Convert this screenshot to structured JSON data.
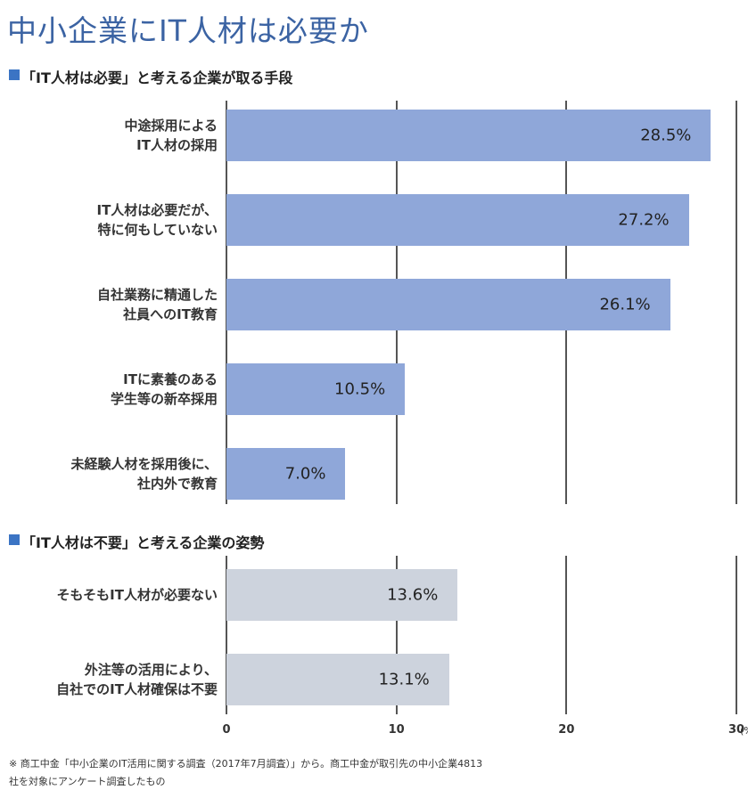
{
  "title": "中小企業にIT人材は必要か",
  "note": "※ 商工中金「中小企業のIT活用に関する調査（2017年7月調査）」から。商工中金が取引先の中小企業4813\n社を対象にアンケート調査したもの",
  "chart_data": [
    {
      "type": "bar",
      "orientation": "horizontal",
      "subtitle": "「IT人材は必要」と考える企業が取る手段",
      "categories": [
        "中途採用による\nIT人材の採用",
        "IT人材は必要だが、\n特に何もしていない",
        "自社業務に精通した\n社員へのIT教育",
        "ITに素養のある\n学生等の新卒採用",
        "未経験人材を採用後に、\n社内外で教育"
      ],
      "values": [
        28.5,
        27.2,
        26.1,
        10.5,
        7.0
      ],
      "value_labels": [
        "28.5%",
        "27.2%",
        "26.1%",
        "10.5%",
        "7.0%"
      ],
      "color": "#8fa7d9",
      "xlim": [
        0,
        30
      ],
      "xticks": [
        0,
        10,
        20,
        30
      ],
      "grid": true
    },
    {
      "type": "bar",
      "orientation": "horizontal",
      "subtitle": "「IT人材は不要」と考える企業の姿勢",
      "categories": [
        "そもそもIT人材が必要ない",
        "外注等の活用により、\n自社でのIT人材確保は不要"
      ],
      "values": [
        13.6,
        13.1
      ],
      "value_labels": [
        "13.6%",
        "13.1%"
      ],
      "color": "#cdd3dd",
      "xlim": [
        0,
        30
      ],
      "xticks": [
        0,
        10,
        20,
        30
      ],
      "grid": true,
      "xlabel": "(%)"
    }
  ]
}
